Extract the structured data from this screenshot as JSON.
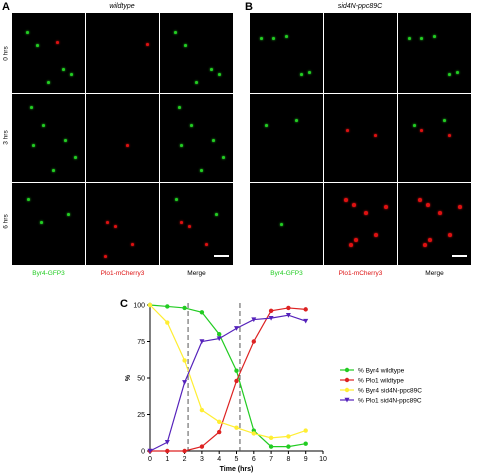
{
  "panel_a": {
    "label": "A",
    "title": "wildtype",
    "rows": [
      "0 hrs",
      "3 hrs",
      "6 hrs"
    ],
    "columns": [
      "Byr4-GFP3",
      "Plo1-mCherry3",
      "Merge"
    ]
  },
  "panel_b": {
    "label": "B",
    "title": "sid4N-ppc89C",
    "columns": [
      "Byr4-GFP3",
      "Plo1-mCherry3",
      "Merge"
    ]
  },
  "panel_c": {
    "label": "C"
  },
  "colors": {
    "green": "#22cc22",
    "red": "#dd1111",
    "yellow": "#ffee33",
    "purple": "#5522bb"
  },
  "chart_data": {
    "type": "line",
    "xlabel": "Time (hrs)",
    "ylabel": "%",
    "xlim": [
      0,
      10
    ],
    "ylim": [
      0,
      100
    ],
    "xticks": [
      0,
      1,
      2,
      3,
      4,
      5,
      6,
      7,
      8,
      9,
      10
    ],
    "yticks": [
      0,
      25,
      50,
      75,
      100
    ],
    "vlines": [
      2.2,
      5.2
    ],
    "legend_position": "right",
    "x": [
      0,
      1,
      2,
      3,
      4,
      5,
      6,
      7,
      8,
      9
    ],
    "series": [
      {
        "name": "% Byr4 wildtype",
        "color": "#22cc22",
        "marker": "circle",
        "values": [
          100,
          99,
          98,
          95,
          80,
          55,
          14,
          3,
          3,
          5
        ]
      },
      {
        "name": "% Plo1 wildtype",
        "color": "#dd2222",
        "marker": "circle",
        "values": [
          0,
          0,
          0,
          3,
          13,
          48,
          75,
          96,
          98,
          97
        ]
      },
      {
        "name": "% Byr4 sid4N-ppc89C",
        "color": "#ffee33",
        "marker": "circle",
        "values": [
          100,
          88,
          62,
          28,
          20,
          16,
          12,
          9,
          10,
          14
        ]
      },
      {
        "name": "% Plo1 sid4N-ppc89C",
        "color": "#5522bb",
        "marker": "triangle-down",
        "values": [
          0,
          6,
          47,
          75,
          77,
          84,
          90,
          91,
          93,
          89
        ]
      }
    ]
  }
}
